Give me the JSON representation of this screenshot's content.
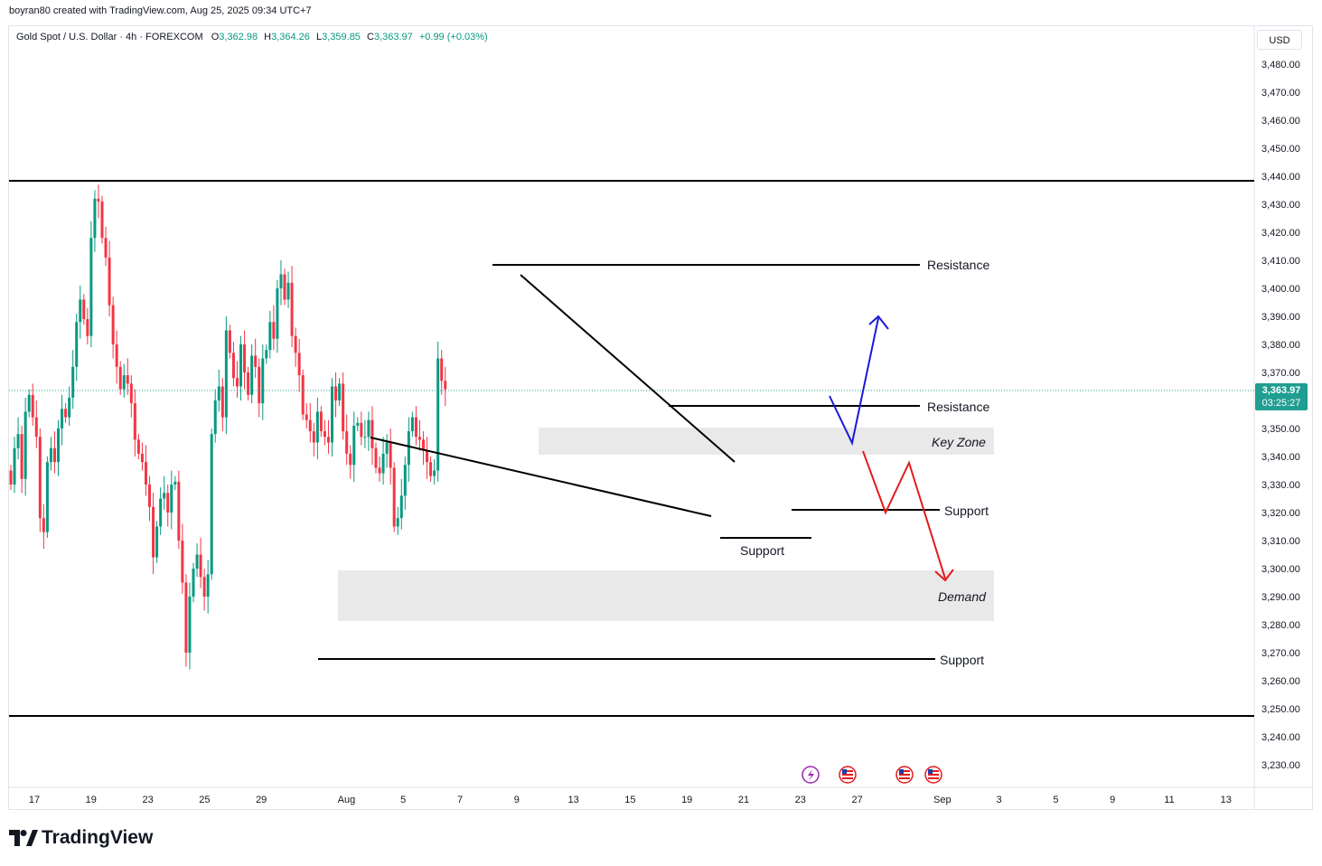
{
  "header": {
    "credit": "boyran80 created with TradingView.com, Aug 25, 2025 09:34 UTC+7"
  },
  "legend": {
    "symbol": "Gold Spot / U.S. Dollar · 4h · FOREXCOM",
    "o_label": "O",
    "o_value": "3,362.98",
    "h_label": "H",
    "h_value": "3,364.26",
    "l_label": "L",
    "l_value": "3,359.85",
    "c_label": "C",
    "c_value": "3,363.97",
    "change": "+0.99 (+0.03%)"
  },
  "currency": "USD",
  "last_price": {
    "price": "3,363.97",
    "countdown": "03:25:27"
  },
  "brand": "TradingView",
  "colors": {
    "up": "#089981",
    "down": "#f23645",
    "price_tag": "#1f9e91",
    "zone": "#e9e9e9",
    "up_path": "#1a1adb",
    "down_path": "#e51b1b"
  },
  "icons": [
    "lightning-event-icon",
    "us-flag-event-icon",
    "us-flag-event-icon",
    "us-flag-event-icon"
  ],
  "chart_data": {
    "type": "candlestick",
    "title": "Gold Spot / U.S. Dollar · 4h · FOREXCOM",
    "ylim": [
      3224,
      3490
    ],
    "y_ticks": [
      3480,
      3470,
      3460,
      3450,
      3440,
      3430,
      3420,
      3410,
      3400,
      3390,
      3380,
      3370,
      3360,
      3350,
      3340,
      3330,
      3320,
      3310,
      3300,
      3290,
      3280,
      3270,
      3260,
      3250,
      3240,
      3230
    ],
    "y_tick_labels": [
      "3,480.00",
      "3,470.00",
      "3,460.00",
      "3,450.00",
      "3,440.00",
      "3,430.00",
      "3,420.00",
      "3,410.00",
      "3,400.00",
      "3,390.00",
      "3,380.00",
      "3,370.00",
      "3,360.00",
      "3,350.00",
      "3,340.00",
      "3,330.00",
      "3,320.00",
      "3,310.00",
      "3,300.00",
      "3,290.00",
      "3,280.00",
      "3,270.00",
      "3,260.00",
      "3,250.00",
      "3,240.00",
      "3,230.00"
    ],
    "x_ticks": [
      {
        "label": "17",
        "day": 0
      },
      {
        "label": "19",
        "day": 2
      },
      {
        "label": "23",
        "day": 4
      },
      {
        "label": "25",
        "day": 6
      },
      {
        "label": "29",
        "day": 8
      },
      {
        "label": "Aug",
        "day": 11
      },
      {
        "label": "5",
        "day": 13
      },
      {
        "label": "7",
        "day": 15
      },
      {
        "label": "9",
        "day": 17
      },
      {
        "label": "13",
        "day": 19
      },
      {
        "label": "15",
        "day": 21
      },
      {
        "label": "19",
        "day": 23
      },
      {
        "label": "21",
        "day": 25
      },
      {
        "label": "23",
        "day": 27
      },
      {
        "label": "27",
        "day": 29
      },
      {
        "label": "Sep",
        "day": 32
      },
      {
        "label": "3",
        "day": 34
      },
      {
        "label": "5",
        "day": 36
      },
      {
        "label": "9",
        "day": 38
      },
      {
        "label": "11",
        "day": 40
      },
      {
        "label": "13",
        "day": 42
      }
    ],
    "closes": [
      3330,
      3343,
      3348,
      3332,
      3356,
      3362,
      3354,
      3347,
      3318,
      3313,
      3338,
      3343,
      3338,
      3350,
      3357,
      3354,
      3361,
      3372,
      3388,
      3396,
      3389,
      3383,
      3418,
      3432,
      3431,
      3418,
      3411,
      3394,
      3380,
      3372,
      3364,
      3369,
      3366,
      3359,
      3346,
      3341,
      3338,
      3330,
      3322,
      3304,
      3315,
      3325,
      3327,
      3320,
      3330,
      3331,
      3310,
      3295,
      3270,
      3290,
      3300,
      3305,
      3297,
      3290,
      3298,
      3348,
      3360,
      3365,
      3354,
      3385,
      3377,
      3368,
      3365,
      3380,
      3370,
      3362,
      3376,
      3372,
      3359,
      3375,
      3378,
      3388,
      3382,
      3400,
      3405,
      3396,
      3402,
      3383,
      3377,
      3369,
      3355,
      3353,
      3349,
      3345,
      3356,
      3349,
      3347,
      3345,
      3365,
      3360,
      3366,
      3349,
      3341,
      3337,
      3351,
      3352,
      3347,
      3347,
      3353,
      3343,
      3336,
      3334,
      3341,
      3345,
      3336,
      3315,
      3318,
      3326,
      3337,
      3349,
      3354,
      3347,
      3346,
      3342,
      3338,
      3333,
      3335,
      3375,
      3367,
      3364
    ],
    "annotations": {
      "horizontal_levels": [
        {
          "label": "",
          "value": 3440
        },
        {
          "label": "",
          "value": 3247
        },
        {
          "label": "Resistance",
          "value": 3409.5
        },
        {
          "label": "Resistance",
          "value": 3359
        },
        {
          "label": "Support",
          "value": 3321
        },
        {
          "label": "Support",
          "value": 3311
        },
        {
          "label": "Support",
          "value": 3268
        }
      ],
      "zones": [
        {
          "label": "Key Zone",
          "from": 3341,
          "to": 3350
        },
        {
          "label": "Demand",
          "from": 3282,
          "to": 3300
        }
      ],
      "trendlines": [
        "upper falling line from 3,405 to 3,339",
        "lower falling line from 3,347 to 3,318"
      ],
      "projections": [
        {
          "color": "blue",
          "values": [
            3363,
            3345,
            3390
          ],
          "label": "bullish path"
        },
        {
          "color": "red",
          "values": [
            3343,
            3320,
            3338,
            3296
          ],
          "label": "bearish path"
        }
      ]
    }
  },
  "labels": {
    "resistance_top": "Resistance",
    "resistance_mid": "Resistance",
    "key_zone": "Key Zone",
    "support_mid": "Support",
    "support_low": "Support",
    "demand": "Demand",
    "support_bottom": "Support"
  }
}
